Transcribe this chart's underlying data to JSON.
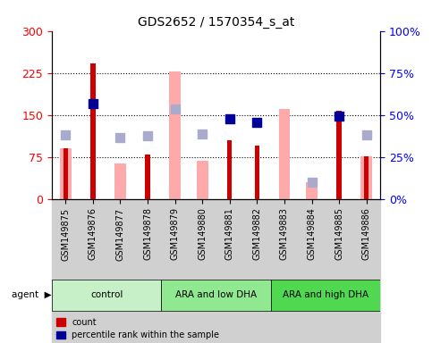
{
  "title": "GDS2652 / 1570354_s_at",
  "samples": [
    "GSM149875",
    "GSM149876",
    "GSM149877",
    "GSM149878",
    "GSM149879",
    "GSM149880",
    "GSM149881",
    "GSM149882",
    "GSM149883",
    "GSM149884",
    "GSM149885",
    "GSM149886"
  ],
  "groups": [
    {
      "label": "control",
      "color": "#c8f0c8",
      "samples": [
        0,
        1,
        2,
        3
      ]
    },
    {
      "label": "ARA and low DHA",
      "color": "#90e890",
      "samples": [
        4,
        5,
        6,
        7
      ]
    },
    {
      "label": "ARA and high DHA",
      "color": "#50d850",
      "samples": [
        8,
        9,
        10,
        11
      ]
    }
  ],
  "count_values": [
    null,
    242,
    null,
    80,
    null,
    null,
    105,
    95,
    null,
    null,
    158,
    76
  ],
  "count_absent": [
    90,
    null,
    null,
    null,
    null,
    null,
    null,
    null,
    null,
    null,
    null,
    null
  ],
  "percentile_rank": [
    null,
    170,
    null,
    null,
    null,
    null,
    143,
    137,
    null,
    null,
    148,
    null
  ],
  "percentile_rank_absent": [
    null,
    null,
    null,
    null,
    null,
    null,
    null,
    null,
    null,
    null,
    null,
    null
  ],
  "value_absent": [
    90,
    null,
    63,
    null,
    228,
    68,
    null,
    null,
    160,
    30,
    null,
    76
  ],
  "rank_absent": [
    115,
    null,
    110,
    113,
    160,
    116,
    null,
    null,
    null,
    30,
    null,
    115
  ],
  "ylim_left": [
    0,
    300
  ],
  "ylim_right": [
    0,
    100
  ],
  "yticks_left": [
    0,
    75,
    150,
    225,
    300
  ],
  "yticks_right": [
    0,
    25,
    50,
    75,
    100
  ],
  "ytick_labels_left": [
    "0",
    "75",
    "150",
    "225",
    "300"
  ],
  "ytick_labels_right": [
    "0%",
    "25%",
    "50%",
    "75%",
    "100%"
  ],
  "color_count": "#cc0000",
  "color_percentile": "#000099",
  "color_value_absent": "#ffaaaa",
  "color_rank_absent": "#aaaacc",
  "bar_width": 0.35,
  "dot_size": 60
}
